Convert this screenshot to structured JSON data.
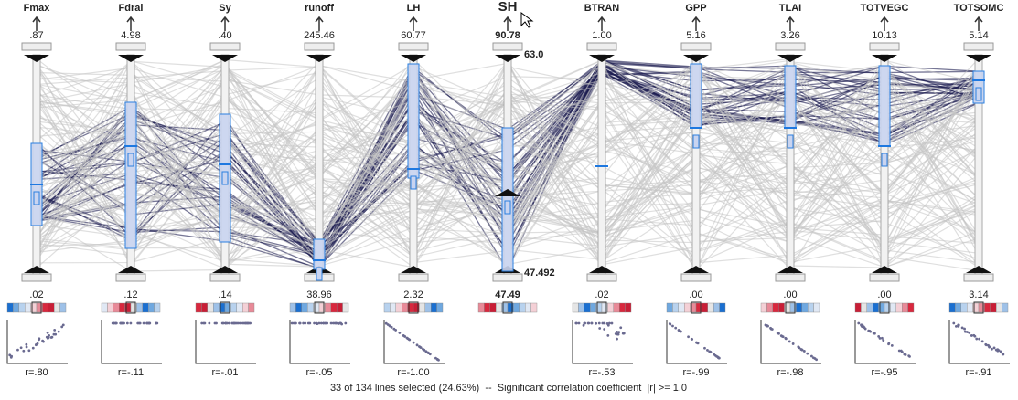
{
  "axes": [
    {
      "name": "Fmax",
      "max": ".87",
      "min": ".02",
      "r": "r=.80"
    },
    {
      "name": "Fdrai",
      "max": "4.98",
      "min": ".12",
      "r": "r=-.11"
    },
    {
      "name": "Sy",
      "max": ".40",
      "min": ".14",
      "r": "r=-.01"
    },
    {
      "name": "runoff",
      "max": "245.46",
      "min": "38.96",
      "r": "r=-.05"
    },
    {
      "name": "LH",
      "max": "60.77",
      "min": "2.32",
      "r": "r=-1.00"
    },
    {
      "name": "SH",
      "max": "90.78",
      "min": "47.49"
    },
    {
      "name": "BTRAN",
      "max": "1.00",
      "min": ".02",
      "r": "r=-.53"
    },
    {
      "name": "GPP",
      "max": "5.16",
      "min": ".00",
      "r": "r=-.99"
    },
    {
      "name": "TLAI",
      "max": "3.26",
      "min": ".00",
      "r": "r=-.98"
    },
    {
      "name": "TOTVEGC",
      "max": "10.13",
      "min": ".00",
      "r": "r=-.95"
    },
    {
      "name": "TOTSOMC",
      "max": "5.14",
      "min": "3.14",
      "r": "r=-.91"
    }
  ],
  "sh_top": "63.0",
  "sh_bottom": "47.492",
  "status": "33 of 134 lines selected (24.63%)  --  Significant correlation coefficient  |r| >= 1.0"
}
